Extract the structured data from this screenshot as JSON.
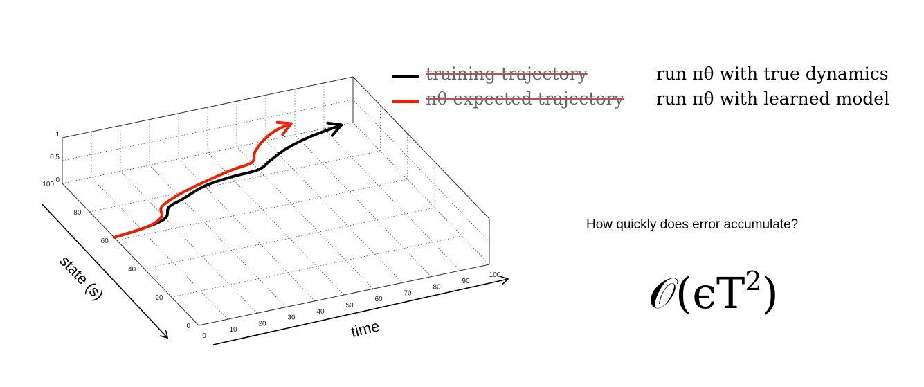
{
  "chart_data": {
    "type": "line",
    "projection": "3d",
    "x_ticks": [
      "0",
      "10",
      "20",
      "30",
      "40",
      "50",
      "60",
      "70",
      "80",
      "90",
      "100"
    ],
    "y_ticks": [
      "0",
      "20",
      "40",
      "60",
      "80",
      "100"
    ],
    "z_ticks": [
      "0",
      "0.5",
      "1"
    ],
    "xlabel": "time",
    "ylabel": "state (s)",
    "xlim": [
      0,
      100
    ],
    "ylim": [
      0,
      100
    ],
    "zlim": [
      0,
      1
    ],
    "grid": true,
    "legend_placement": "top-right",
    "series": [
      {
        "name": "training trajectory",
        "color": "#000000",
        "points": [
          [
            0,
            62
          ],
          [
            12,
            64
          ],
          [
            20,
            67
          ],
          [
            24,
            73
          ],
          [
            30,
            76
          ],
          [
            40,
            81
          ],
          [
            50,
            83
          ],
          [
            60,
            84
          ],
          [
            66,
            88
          ],
          [
            74,
            93
          ],
          [
            84,
            97
          ],
          [
            96,
            100
          ]
        ]
      },
      {
        "name": "expected trajectory",
        "color": "#ee2200",
        "points": [
          [
            0,
            62
          ],
          [
            12,
            64
          ],
          [
            19,
            68
          ],
          [
            22,
            74
          ],
          [
            30,
            79
          ],
          [
            40,
            83
          ],
          [
            52,
            87
          ],
          [
            60,
            89
          ],
          [
            64,
            95
          ],
          [
            70,
            101
          ],
          [
            76,
            105
          ],
          [
            82,
            107
          ]
        ]
      }
    ]
  },
  "legend": {
    "items": [
      {
        "label": "training trajectory",
        "color": "#000000"
      },
      {
        "label": "πθ expected trajectory",
        "color": "#ee2200"
      }
    ]
  },
  "notes": {
    "line1": "run πθ with true dynamics",
    "line2": "run πθ with learned model"
  },
  "question": "How quickly does error accumulate?",
  "formula": {
    "main": "𝒪(ϵT",
    "exponent": "2",
    "close": ")"
  }
}
